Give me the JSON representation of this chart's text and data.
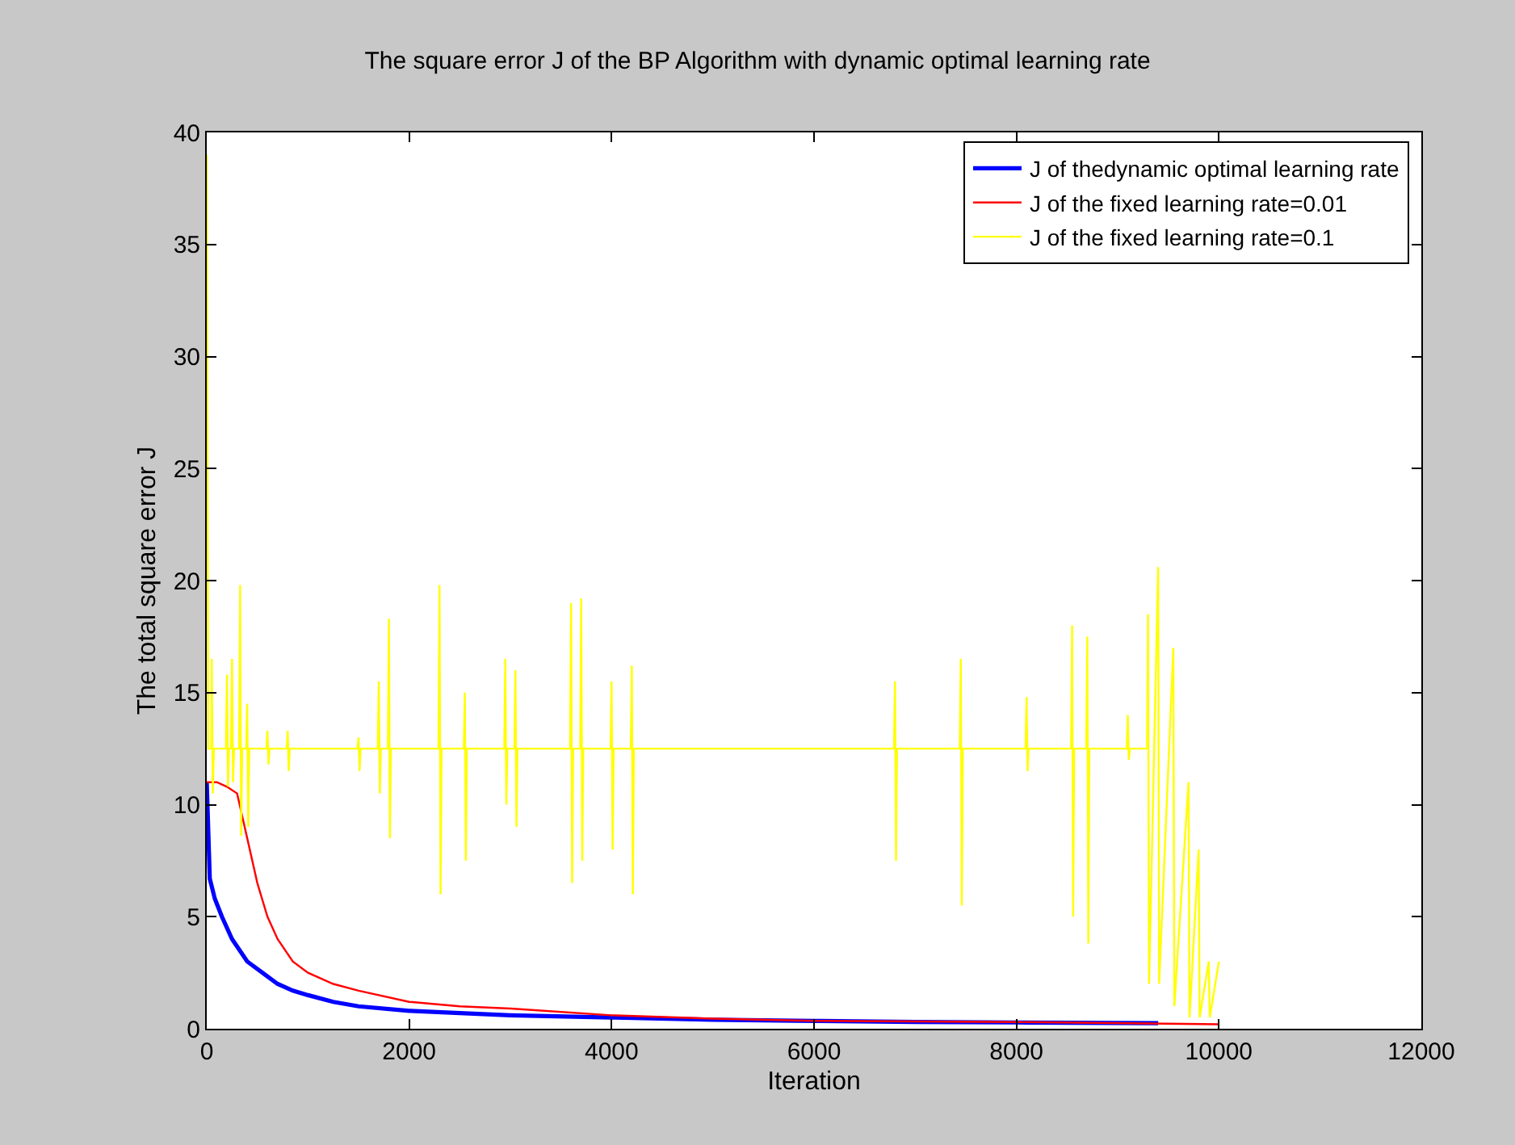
{
  "chart_data": {
    "type": "line",
    "title": "The square error J of the BP Algorithm with dynamic optimal learning rate",
    "xlabel": "Iteration",
    "ylabel": "The total square error J",
    "xlim": [
      0,
      12000
    ],
    "xticks": [
      0,
      2000,
      4000,
      6000,
      8000,
      10000,
      12000
    ],
    "ylim": [
      0,
      40
    ],
    "yticks": [
      0,
      5,
      10,
      15,
      20,
      25,
      30,
      35,
      40
    ],
    "legend": "top right",
    "series": [
      {
        "name": "J of thedynamic optimal learning rate",
        "color": "#0000ff",
        "x": [
          0,
          30,
          80,
          150,
          250,
          400,
          550,
          700,
          850,
          1000,
          1250,
          1500,
          2000,
          2500,
          3000,
          4000,
          5000,
          6000,
          7000,
          8000,
          9400
        ],
        "values": [
          11,
          6.7,
          5.8,
          5,
          4,
          3,
          2.5,
          2,
          1.7,
          1.5,
          1.2,
          1,
          0.8,
          0.7,
          0.6,
          0.5,
          0.4,
          0.35,
          0.3,
          0.28,
          0.25
        ]
      },
      {
        "name": "J of the fixed learning rate=0.01",
        "color": "#ff0000",
        "x": [
          0,
          100,
          200,
          300,
          400,
          500,
          600,
          700,
          850,
          1000,
          1250,
          1500,
          2000,
          2500,
          3000,
          4000,
          5000,
          6000,
          8000,
          10000
        ],
        "values": [
          11,
          11,
          10.8,
          10.5,
          8.5,
          6.5,
          5,
          4,
          3,
          2.5,
          2,
          1.7,
          1.2,
          1,
          0.9,
          0.6,
          0.45,
          0.35,
          0.3,
          0.2
        ]
      },
      {
        "name": "J of the fixed learning rate=0.1",
        "color": "#ffff00",
        "x": [
          0,
          15,
          45,
          50,
          60,
          70,
          190,
          200,
          210,
          220,
          240,
          250,
          260,
          270,
          320,
          330,
          340,
          350,
          390,
          400,
          410,
          420,
          590,
          600,
          610,
          620,
          790,
          800,
          810,
          820,
          1490,
          1500,
          1510,
          1520,
          1690,
          1700,
          1710,
          1720,
          1790,
          1800,
          1810,
          1820,
          2290,
          2300,
          2310,
          2320,
          2540,
          2550,
          2560,
          2570,
          2940,
          2950,
          2960,
          2970,
          3040,
          3050,
          3060,
          3070,
          3590,
          3600,
          3610,
          3620,
          3690,
          3700,
          3710,
          3720,
          3990,
          4000,
          4010,
          4020,
          4190,
          4200,
          4210,
          4220,
          6790,
          6800,
          6810,
          6820,
          7440,
          7450,
          7460,
          7470,
          8090,
          8100,
          8110,
          8120,
          8540,
          8550,
          8560,
          8570,
          8690,
          8700,
          8710,
          8720,
          9090,
          9100,
          9110,
          9120,
          9290,
          9300,
          9310,
          9400,
          9410,
          9550,
          9560,
          9700,
          9710,
          9800,
          9810,
          9900,
          9910,
          10000
        ],
        "values": [
          39,
          12.5,
          12.5,
          16.5,
          10.5,
          12.5,
          12.5,
          15.8,
          10.8,
          12.5,
          12.5,
          16.5,
          11,
          12.5,
          12.5,
          19.8,
          8.6,
          12.5,
          12.5,
          14.5,
          9,
          12.5,
          12.5,
          13.3,
          11.8,
          12.5,
          12.5,
          13.3,
          11.5,
          12.5,
          12.5,
          13,
          11.5,
          12.5,
          12.5,
          15.5,
          10.5,
          12.5,
          12.5,
          18.3,
          8.5,
          12.5,
          12.5,
          19.8,
          6,
          12.5,
          12.5,
          15,
          7.5,
          12.5,
          12.5,
          16.5,
          10,
          12.5,
          12.5,
          16,
          9,
          12.5,
          12.5,
          19,
          6.5,
          12.5,
          12.5,
          19.2,
          7.5,
          12.5,
          12.5,
          15.5,
          8,
          12.5,
          12.5,
          16.2,
          6,
          12.5,
          12.5,
          15.5,
          7.5,
          12.5,
          12.5,
          16.5,
          5.5,
          12.5,
          12.5,
          14.8,
          11.5,
          12.5,
          12.5,
          18,
          5,
          12.5,
          12.5,
          17.5,
          3.8,
          12.5,
          12.5,
          14,
          12,
          12.5,
          12.5,
          18.5,
          2,
          20.6,
          2,
          17,
          1,
          11,
          0.5,
          8,
          0.5,
          3,
          0.5,
          3
        ]
      }
    ]
  }
}
